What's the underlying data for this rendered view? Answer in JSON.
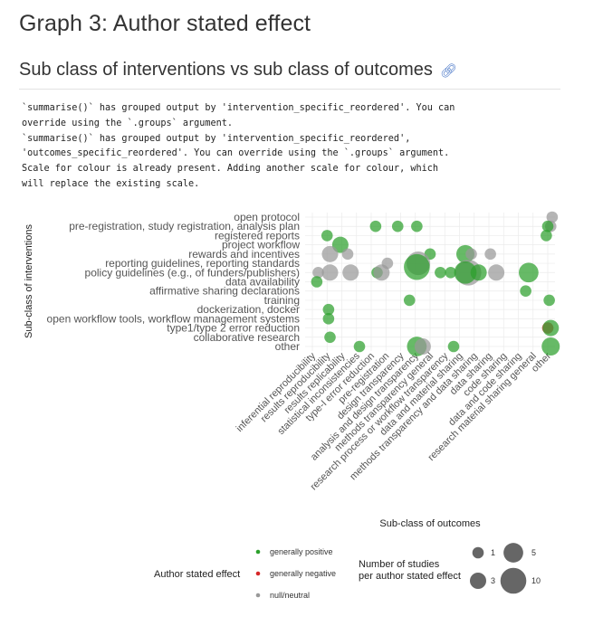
{
  "page": {
    "title": "Graph 3: Author stated effect",
    "subtitle": "Sub class of interventions vs sub class of outcomes",
    "anchor_icon": "link-icon",
    "console_lines": [
      "`summarise()` has grouped output by 'intervention_specific_reordered'. You can",
      "override using the `.groups` argument.",
      "`summarise()` has grouped output by 'intervention_specific_reordered',",
      "'outcomes_specific_reordered'. You can override using the `.groups` argument.",
      "Scale for colour is already present. Adding another scale for colour, which",
      "will replace the existing scale."
    ]
  },
  "chart_data": {
    "type": "scatter",
    "xlabel": "Sub-class of outcomes",
    "ylabel": "Sub-class of interventions",
    "x_categories": [
      "inferential reproducibility",
      "results reproducibility",
      "results replicability",
      "statistical inconsistencies",
      "type-I error reduction",
      "pre-registration",
      "design transparency",
      "analysis and design transparency",
      "methods transparency general",
      "research process or workflow transparency",
      "data and material sharing",
      "methods transparency and data sharing",
      "data sharing",
      "code sharing",
      "data and code sharing",
      "research material sharing general",
      "other"
    ],
    "y_categories": [
      "open protocol",
      "pre-registration, study registration, analysis plan",
      "registered reports",
      "project workflow",
      "rewards and incentives",
      "reporting guidelines, reporting standards",
      "policy guidelines (e.g., of funders/publishers)",
      "data availability",
      "affirmative sharing declarations",
      "training",
      "dockerization, docker",
      "open workflow tools, workflow management systems",
      "type1/type 2 error reduction",
      "collaborative research",
      "other"
    ],
    "effect_colors": {
      "generally positive": "#2ca02c",
      "generally negative": "#d62728",
      "null/neutral": "#999999"
    },
    "points": [
      {
        "x": 16.3,
        "y": 0,
        "n": 1,
        "effect": "null/neutral"
      },
      {
        "x": 16.2,
        "y": 1,
        "n": 1,
        "effect": "null/neutral"
      },
      {
        "x": 16.0,
        "y": 1,
        "n": 1,
        "effect": "generally positive"
      },
      {
        "x": 4.3,
        "y": 1,
        "n": 1,
        "effect": "generally positive"
      },
      {
        "x": 5.8,
        "y": 1,
        "n": 1,
        "effect": "generally positive"
      },
      {
        "x": 7.1,
        "y": 1,
        "n": 1,
        "effect": "generally positive"
      },
      {
        "x": 1.0,
        "y": 2,
        "n": 1,
        "effect": "generally positive"
      },
      {
        "x": 15.9,
        "y": 2,
        "n": 1,
        "effect": "generally positive"
      },
      {
        "x": 1.9,
        "y": 3,
        "n": 3,
        "effect": "generally positive"
      },
      {
        "x": 1.2,
        "y": 4,
        "n": 3,
        "effect": "null/neutral"
      },
      {
        "x": 2.4,
        "y": 4,
        "n": 1,
        "effect": "null/neutral"
      },
      {
        "x": 8.0,
        "y": 4,
        "n": 1,
        "effect": "generally positive"
      },
      {
        "x": 10.4,
        "y": 4,
        "n": 4,
        "effect": "generally positive"
      },
      {
        "x": 10.8,
        "y": 4,
        "n": 1,
        "effect": "null/neutral"
      },
      {
        "x": 12.1,
        "y": 4,
        "n": 1,
        "effect": "null/neutral"
      },
      {
        "x": 5.1,
        "y": 5,
        "n": 1,
        "effect": "null/neutral"
      },
      {
        "x": 7.2,
        "y": 5,
        "n": 8,
        "effect": "null/neutral"
      },
      {
        "x": 7.1,
        "y": 5.4,
        "n": 10,
        "effect": "generally positive"
      },
      {
        "x": 0.4,
        "y": 6,
        "n": 1,
        "effect": "null/neutral"
      },
      {
        "x": 1.2,
        "y": 6,
        "n": 3,
        "effect": "null/neutral"
      },
      {
        "x": 2.6,
        "y": 6,
        "n": 3,
        "effect": "null/neutral"
      },
      {
        "x": 4.4,
        "y": 6,
        "n": 1,
        "effect": "generally positive"
      },
      {
        "x": 4.7,
        "y": 6,
        "n": 3,
        "effect": "null/neutral"
      },
      {
        "x": 8.7,
        "y": 6,
        "n": 1,
        "effect": "generally positive"
      },
      {
        "x": 9.4,
        "y": 6,
        "n": 1,
        "effect": "generally positive"
      },
      {
        "x": 10.6,
        "y": 6,
        "n": 10,
        "effect": "null/neutral"
      },
      {
        "x": 10.4,
        "y": 6,
        "n": 7,
        "effect": "generally positive"
      },
      {
        "x": 11.3,
        "y": 6,
        "n": 3,
        "effect": "generally positive"
      },
      {
        "x": 12.5,
        "y": 6,
        "n": 3,
        "effect": "null/neutral"
      },
      {
        "x": 14.7,
        "y": 6,
        "n": 5,
        "effect": "generally positive"
      },
      {
        "x": 0.3,
        "y": 7,
        "n": 1,
        "effect": "generally positive"
      },
      {
        "x": 14.5,
        "y": 8,
        "n": 1,
        "effect": "generally positive"
      },
      {
        "x": 6.6,
        "y": 9,
        "n": 1,
        "effect": "generally positive"
      },
      {
        "x": 16.1,
        "y": 9,
        "n": 1,
        "effect": "generally positive"
      },
      {
        "x": 1.1,
        "y": 10,
        "n": 1,
        "effect": "generally positive"
      },
      {
        "x": 1.1,
        "y": 11,
        "n": 1,
        "effect": "generally positive"
      },
      {
        "x": 16.0,
        "y": 12,
        "n": 1,
        "effect": "generally negative"
      },
      {
        "x": 16.2,
        "y": 12,
        "n": 3,
        "effect": "generally positive"
      },
      {
        "x": 1.2,
        "y": 13,
        "n": 1,
        "effect": "generally positive"
      },
      {
        "x": 3.2,
        "y": 14,
        "n": 1,
        "effect": "generally positive"
      },
      {
        "x": 7.1,
        "y": 14,
        "n": 5,
        "effect": "generally positive"
      },
      {
        "x": 7.5,
        "y": 14,
        "n": 3,
        "effect": "null/neutral"
      },
      {
        "x": 9.6,
        "y": 14,
        "n": 1,
        "effect": "generally positive"
      },
      {
        "x": 16.2,
        "y": 14,
        "n": 4,
        "effect": "generally positive"
      }
    ],
    "legend_color": {
      "title": "Author stated effect",
      "entries": [
        "generally positive",
        "generally negative",
        "null/neutral"
      ]
    },
    "legend_size": {
      "title_line1": "Number of studies",
      "title_line2": "per author stated effect",
      "entries": [
        {
          "label": "1",
          "n": 1
        },
        {
          "label": "5",
          "n": 5
        },
        {
          "label": "3",
          "n": 3
        },
        {
          "label": "10",
          "n": 10
        }
      ]
    }
  }
}
